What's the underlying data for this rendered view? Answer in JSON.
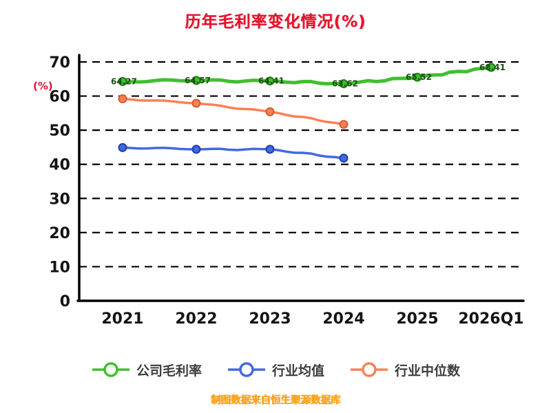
{
  "title": "历年毛利率变化情况(%)",
  "footer": "制图数据来自恒生聚源数据库",
  "chart_data": {
    "type": "line",
    "title": "历年毛利率变化情况(%)",
    "categories": [
      "2021",
      "2022",
      "2023",
      "2024",
      "2025",
      "2026Q1"
    ],
    "xlabel": "",
    "ylabel": "(%)",
    "ylim": [
      0,
      70
    ],
    "yticks": [
      0,
      10,
      20,
      30,
      40,
      50,
      60,
      70
    ],
    "grid": "horizontal-dashed",
    "legend_position": "bottom",
    "source_note": "制图数据来自恒生聚源数据库",
    "series": [
      {
        "name": "公司毛利率",
        "color": "#3fbf2f",
        "marker_stroke": "#1c7a10",
        "values": [
          64.27,
          64.57,
          64.41,
          63.62,
          65.52,
          68.41
        ],
        "point_labels_shown": true
      },
      {
        "name": "行业均值",
        "color": "#4169e1",
        "marker_stroke": "#1f3fae",
        "values": [
          44.9,
          44.4,
          44.4,
          41.8
        ],
        "point_labels_shown": false
      },
      {
        "name": "行业中位数",
        "color": "#fa8155",
        "marker_stroke": "#d85a2e",
        "values": [
          59.2,
          57.9,
          55.4,
          51.7
        ],
        "point_labels_shown": false
      }
    ]
  }
}
